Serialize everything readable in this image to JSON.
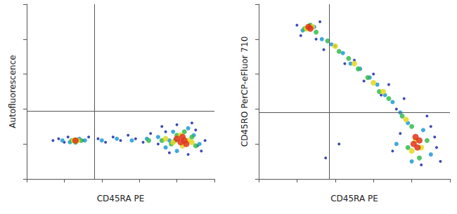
{
  "chart_data": [
    {
      "type": "scatter",
      "x_label": "CD45RA PE",
      "y_label": "Autofluorescence",
      "xlim": [
        0,
        100
      ],
      "ylim": [
        0,
        100
      ],
      "xticks": [
        0,
        20,
        40,
        60,
        80,
        100
      ],
      "yticks": [
        0,
        20,
        40,
        60,
        80,
        100
      ],
      "tick_labels": false,
      "grid": false,
      "gate_x": 36,
      "gate_y": 39,
      "series": [
        {
          "color": "#1c2aa6",
          "x": [
            14,
            17,
            20,
            22,
            30,
            33,
            38,
            42,
            46,
            50,
            54,
            58,
            62,
            66,
            70,
            74,
            90,
            93,
            95,
            72,
            76,
            80,
            86,
            88,
            91
          ],
          "y": [
            22,
            23,
            21,
            24,
            22,
            24,
            23,
            21,
            24,
            22,
            25,
            23,
            21,
            26,
            20,
            27,
            28,
            16,
            22,
            30,
            15,
            31,
            14,
            32,
            19
          ]
        },
        {
          "color": "#1f9ad6",
          "x": [
            19,
            23,
            28,
            31,
            40,
            48,
            56,
            64,
            70,
            74,
            78,
            80,
            86,
            89,
            92,
            76
          ],
          "y": [
            22,
            21,
            23,
            22,
            22,
            23,
            22,
            23,
            24,
            18,
            27,
            16,
            29,
            25,
            20,
            22
          ]
        },
        {
          "color": "#37bb4e",
          "x": [
            24,
            26,
            29,
            65,
            72,
            77,
            80,
            84,
            88,
            90,
            79
          ],
          "y": [
            22,
            21,
            22,
            22,
            22,
            20,
            25,
            27,
            24,
            19,
            22
          ]
        },
        {
          "color": "#e2d81e",
          "x": [
            25,
            27,
            74,
            78,
            82,
            86,
            88,
            83
          ],
          "y": [
            22,
            22,
            23,
            21,
            25,
            22,
            21,
            19
          ]
        },
        {
          "color": "#e0341c",
          "x": [
            26,
            80,
            82,
            84,
            85,
            83
          ],
          "y": [
            22,
            23,
            21,
            22,
            20,
            24
          ]
        }
      ]
    },
    {
      "type": "scatter",
      "x_label": "CD45RA PE",
      "y_label": "CD45RO PerCP-eFluor 710",
      "xlim": [
        0,
        100
      ],
      "ylim": [
        0,
        100
      ],
      "xticks": [
        0,
        20,
        40,
        60,
        80,
        100
      ],
      "yticks": [
        0,
        20,
        40,
        60,
        80,
        100
      ],
      "tick_labels": false,
      "grid": false,
      "gate_x": 37,
      "gate_y": 38,
      "series": [
        {
          "color": "#1c2aa6",
          "x": [
            20,
            22,
            32,
            30,
            34,
            40,
            45,
            50,
            55,
            60,
            64,
            68,
            72,
            76,
            90,
            93,
            95,
            85,
            70,
            88,
            35,
            42,
            92,
            74
          ],
          "y": [
            88,
            82,
            90,
            80,
            74,
            76,
            66,
            68,
            56,
            60,
            48,
            54,
            40,
            46,
            30,
            18,
            10,
            8,
            16,
            36,
            12,
            20,
            24,
            26
          ]
        },
        {
          "color": "#1f9ad6",
          "x": [
            23,
            29,
            33,
            38,
            44,
            48,
            53,
            58,
            62,
            66,
            70,
            74,
            78,
            86,
            90,
            80,
            72
          ],
          "y": [
            85,
            87,
            80,
            77,
            72,
            66,
            63,
            58,
            54,
            48,
            44,
            38,
            32,
            28,
            14,
            10,
            20
          ]
        },
        {
          "color": "#37bb4e",
          "x": [
            24,
            27,
            30,
            36,
            42,
            47,
            52,
            57,
            63,
            68,
            75,
            80,
            88,
            84,
            78
          ],
          "y": [
            86,
            88,
            84,
            79,
            73,
            69,
            63,
            58,
            50,
            46,
            36,
            30,
            22,
            12,
            18
          ]
        },
        {
          "color": "#e2d81e",
          "x": [
            25,
            28,
            40,
            50,
            60,
            65,
            77,
            82,
            85,
            80
          ],
          "y": [
            86,
            87,
            76,
            66,
            55,
            50,
            34,
            22,
            18,
            16
          ]
        },
        {
          "color": "#e0341c",
          "x": [
            26,
            27,
            81,
            83,
            84,
            82
          ],
          "y": [
            87,
            86,
            20,
            18,
            22,
            24
          ]
        }
      ]
    }
  ]
}
